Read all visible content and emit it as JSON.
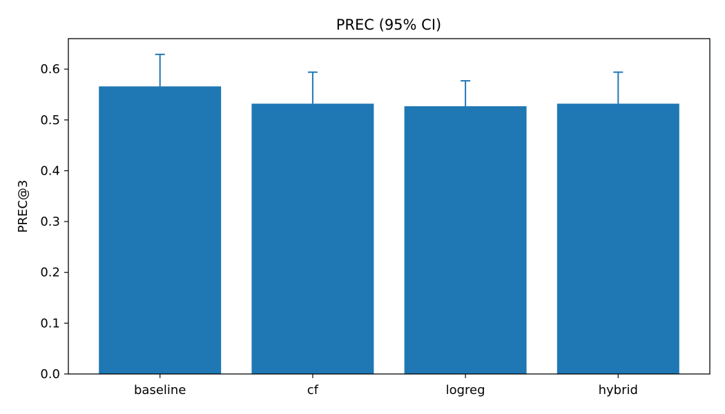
{
  "chart_data": {
    "type": "bar",
    "title": "PREC (95% CI)",
    "xlabel": "",
    "ylabel": "PREC@3",
    "categories": [
      "baseline",
      "cf",
      "logreg",
      "hybrid"
    ],
    "values": [
      0.566,
      0.532,
      0.527,
      0.532
    ],
    "ci_upper": [
      0.629,
      0.594,
      0.577,
      0.594
    ],
    "ylim": [
      0,
      0.66
    ],
    "yticks": [
      0.0,
      0.1,
      0.2,
      0.3,
      0.4,
      0.5,
      0.6
    ],
    "ytick_labels": [
      "0.0",
      "0.1",
      "0.2",
      "0.3",
      "0.4",
      "0.5",
      "0.6"
    ],
    "grid": false,
    "legend": "none",
    "colors": {
      "bar": "#1f77b4",
      "errorbar": "#1f77b4",
      "axis": "#000000"
    }
  }
}
